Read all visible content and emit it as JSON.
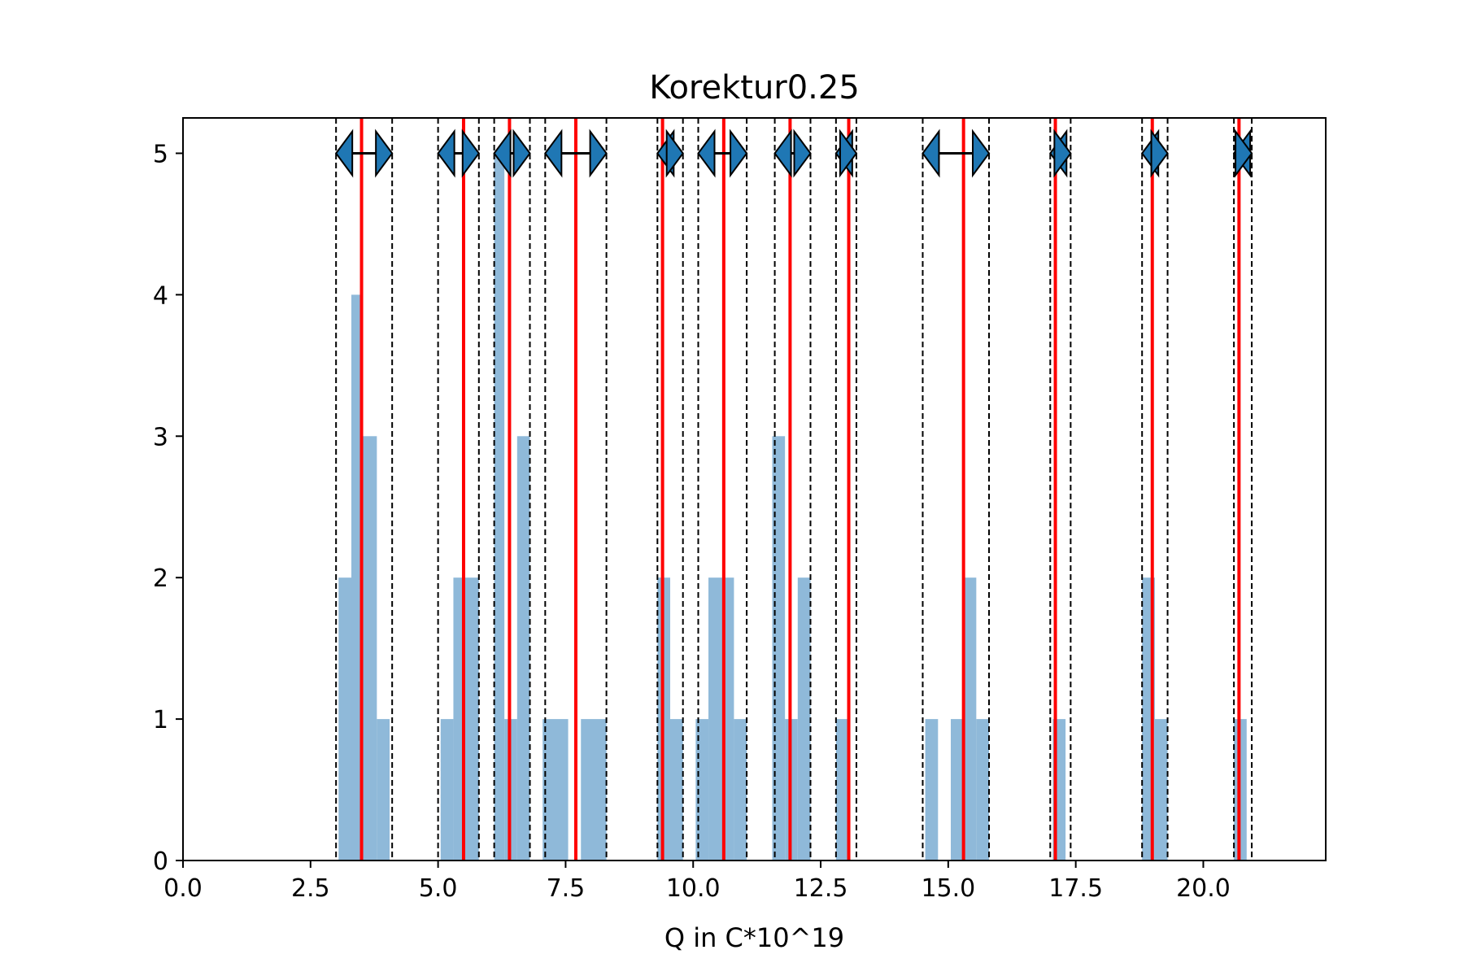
{
  "chart_data": {
    "type": "bar",
    "title": "Korektur0.25",
    "xlabel": "Q in C*10^19",
    "ylabel": "",
    "xlim": [
      0,
      22.4
    ],
    "ylim": [
      0,
      5.25
    ],
    "grid": false,
    "legend": "none",
    "x_ticks": [
      "0.0",
      "2.5",
      "5.0",
      "7.5",
      "10.0",
      "12.5",
      "15.0",
      "17.5",
      "20.0"
    ],
    "y_ticks": [
      "0",
      "1",
      "2",
      "3",
      "4",
      "5"
    ],
    "histogram": {
      "color": "#8fb9d9",
      "bins": [
        {
          "x0": 3.05,
          "x1": 3.3,
          "count": 2
        },
        {
          "x0": 3.3,
          "x1": 3.5,
          "count": 4
        },
        {
          "x0": 3.5,
          "x1": 3.8,
          "count": 3
        },
        {
          "x0": 3.8,
          "x1": 4.05,
          "count": 1
        },
        {
          "x0": 5.05,
          "x1": 5.3,
          "count": 1
        },
        {
          "x0": 5.3,
          "x1": 5.8,
          "count": 2
        },
        {
          "x0": 6.1,
          "x1": 6.3,
          "count": 5
        },
        {
          "x0": 6.3,
          "x1": 6.55,
          "count": 1
        },
        {
          "x0": 6.55,
          "x1": 6.8,
          "count": 3
        },
        {
          "x0": 7.05,
          "x1": 7.55,
          "count": 1
        },
        {
          "x0": 7.8,
          "x1": 8.3,
          "count": 1
        },
        {
          "x0": 9.3,
          "x1": 9.55,
          "count": 2
        },
        {
          "x0": 9.55,
          "x1": 9.8,
          "count": 1
        },
        {
          "x0": 10.05,
          "x1": 10.3,
          "count": 1
        },
        {
          "x0": 10.3,
          "x1": 10.8,
          "count": 2
        },
        {
          "x0": 10.8,
          "x1": 11.05,
          "count": 1
        },
        {
          "x0": 11.55,
          "x1": 11.8,
          "count": 3
        },
        {
          "x0": 11.8,
          "x1": 12.05,
          "count": 1
        },
        {
          "x0": 12.05,
          "x1": 12.3,
          "count": 2
        },
        {
          "x0": 12.8,
          "x1": 13.05,
          "count": 1
        },
        {
          "x0": 14.55,
          "x1": 14.8,
          "count": 1
        },
        {
          "x0": 15.05,
          "x1": 15.3,
          "count": 1
        },
        {
          "x0": 15.3,
          "x1": 15.55,
          "count": 2
        },
        {
          "x0": 15.55,
          "x1": 15.8,
          "count": 1
        },
        {
          "x0": 17.05,
          "x1": 17.3,
          "count": 1
        },
        {
          "x0": 18.8,
          "x1": 19.05,
          "count": 2
        },
        {
          "x0": 19.05,
          "x1": 19.3,
          "count": 1
        },
        {
          "x0": 20.6,
          "x1": 20.85,
          "count": 1
        }
      ]
    },
    "clusters": {
      "mean_line_color": "#ff0000",
      "arrow_color": "#1f77b4",
      "arrow_y": 5,
      "items": [
        {
          "mean": 3.5,
          "lower": 3.0,
          "upper": 4.1
        },
        {
          "mean": 5.5,
          "lower": 5.0,
          "upper": 5.8
        },
        {
          "mean": 6.4,
          "lower": 6.1,
          "upper": 6.8
        },
        {
          "mean": 7.7,
          "lower": 7.1,
          "upper": 8.3
        },
        {
          "mean": 9.4,
          "lower": 9.3,
          "upper": 9.8
        },
        {
          "mean": 10.6,
          "lower": 10.1,
          "upper": 11.05
        },
        {
          "mean": 11.9,
          "lower": 11.6,
          "upper": 12.3
        },
        {
          "mean": 13.05,
          "lower": 12.8,
          "upper": 13.2
        },
        {
          "mean": 15.3,
          "lower": 14.5,
          "upper": 15.8
        },
        {
          "mean": 17.1,
          "lower": 17.0,
          "upper": 17.4
        },
        {
          "mean": 19.0,
          "lower": 18.8,
          "upper": 19.3
        },
        {
          "mean": 20.7,
          "lower": 20.6,
          "upper": 20.95
        }
      ]
    }
  }
}
